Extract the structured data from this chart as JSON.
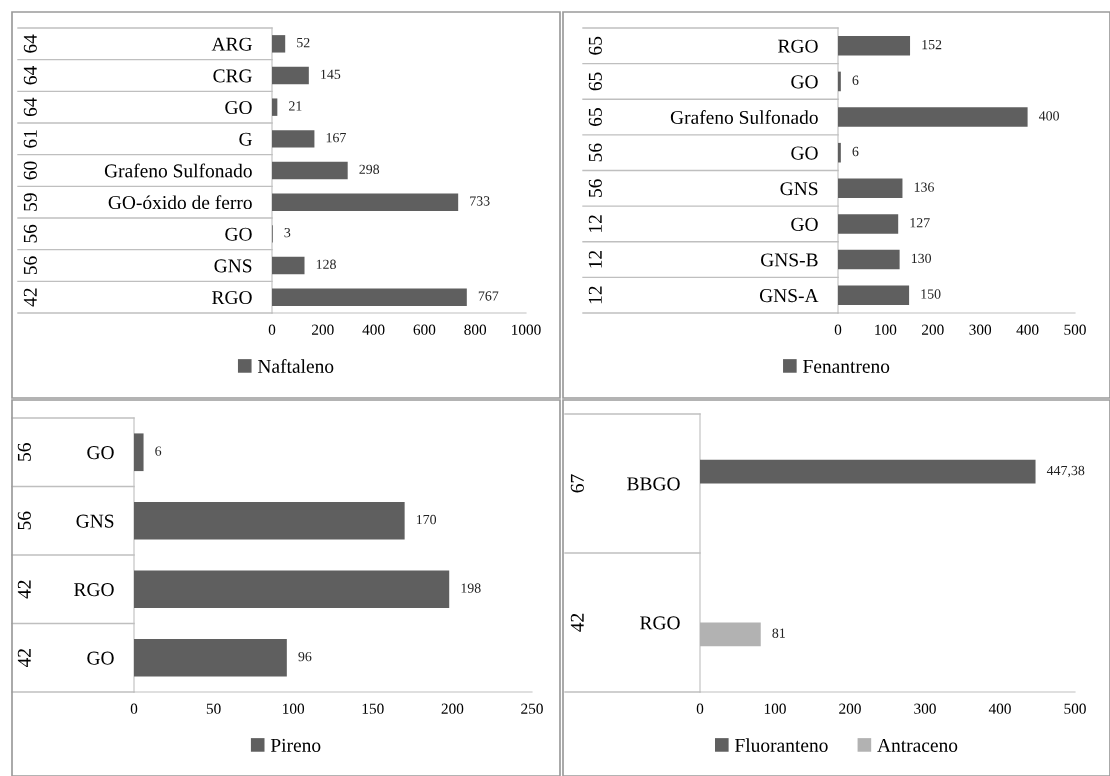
{
  "chart_data": [
    {
      "type": "bar",
      "orientation": "horizontal",
      "categories": [
        "ARG",
        "CRG",
        "GO",
        "G",
        "Grafeno Sulfonado",
        "GO-óxido de ferro",
        "GO",
        "GNS",
        "RGO"
      ],
      "y2_categories": [
        "64",
        "64",
        "64",
        "61",
        "60",
        "59",
        "56",
        "56",
        "42"
      ],
      "series": [
        {
          "name": "Naftaleno",
          "color": "#5f5f5f",
          "values": [
            52,
            145,
            21,
            167,
            298,
            733,
            3,
            128,
            767
          ]
        }
      ],
      "xlim": [
        0,
        1000
      ],
      "xticks": [
        0,
        200,
        400,
        600,
        800,
        1000
      ],
      "data_labels": true,
      "legend": "bottom",
      "grid": false
    },
    {
      "type": "bar",
      "orientation": "horizontal",
      "categories": [
        "RGO",
        "GO",
        "Grafeno Sulfonado",
        "GO",
        "GNS",
        "GO",
        "GNS-B",
        "GNS-A"
      ],
      "y2_categories": [
        "65",
        "65",
        "65",
        "56",
        "56",
        "12",
        "12",
        "12"
      ],
      "series": [
        {
          "name": "Fenantreno",
          "color": "#5f5f5f",
          "values": [
            152,
            6,
            400,
            6,
            136,
            127,
            130,
            150
          ]
        }
      ],
      "xlim": [
        0,
        500
      ],
      "xticks": [
        0,
        100,
        200,
        300,
        400,
        500
      ],
      "data_labels": true,
      "legend": "bottom",
      "grid": false
    },
    {
      "type": "bar",
      "orientation": "horizontal",
      "categories": [
        "GO",
        "GNS",
        "RGO",
        "GO"
      ],
      "y2_categories": [
        "56",
        "56",
        "42",
        "42"
      ],
      "series": [
        {
          "name": "Pireno",
          "color": "#5f5f5f",
          "values": [
            6,
            170,
            198,
            96
          ]
        }
      ],
      "xlim": [
        0,
        250
      ],
      "xticks": [
        0,
        50,
        100,
        150,
        200,
        250
      ],
      "data_labels": true,
      "legend": "bottom",
      "grid": false
    },
    {
      "type": "bar",
      "orientation": "horizontal",
      "categories": [
        "BBGO",
        "RGO"
      ],
      "y2_categories": [
        "67",
        "42"
      ],
      "series": [
        {
          "name": "Fluoranteno",
          "color": "#5f5f5f",
          "values": [
            447.38,
            null
          ],
          "value_labels": [
            "447,38",
            null
          ]
        },
        {
          "name": "Antraceno",
          "color": "#b2b2b2",
          "values": [
            null,
            81
          ],
          "value_labels": [
            null,
            "81"
          ]
        }
      ],
      "xlim": [
        0,
        500
      ],
      "xticks": [
        0,
        100,
        200,
        300,
        400,
        500
      ],
      "legend": "bottom",
      "grid": false
    }
  ]
}
